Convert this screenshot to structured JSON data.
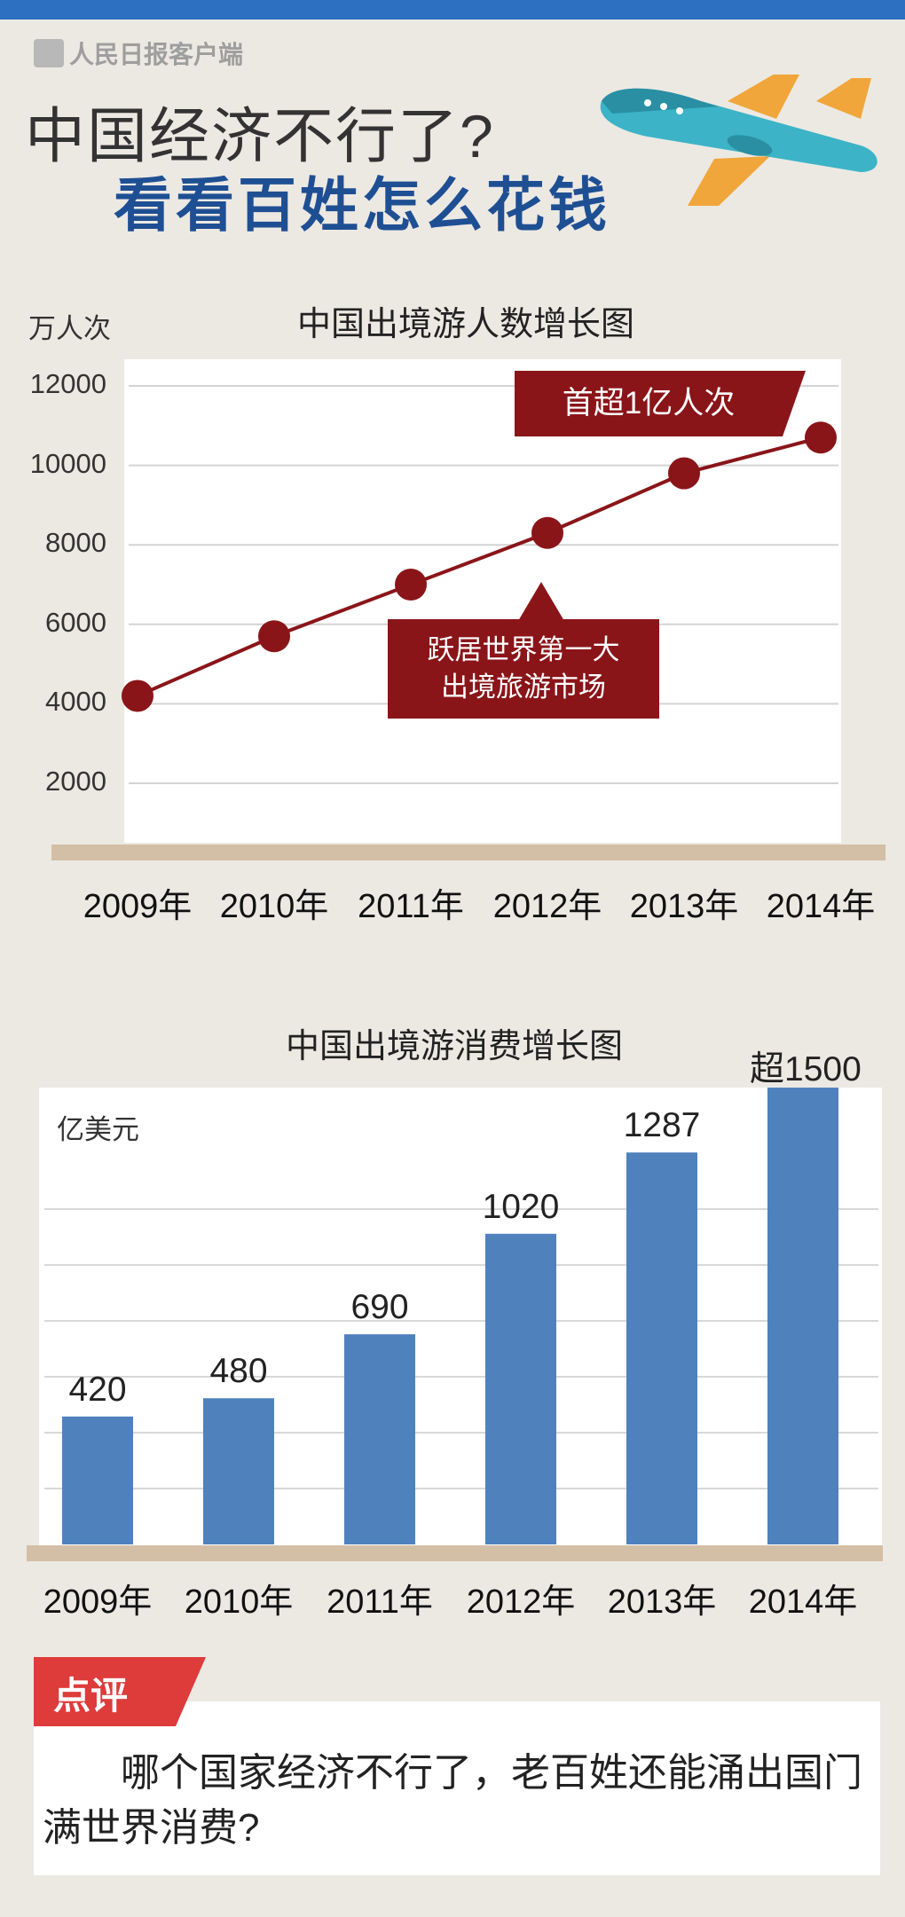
{
  "brand": {
    "logo_text": "人民日报客户端",
    "title_line1": "中国经济不行了?",
    "title_line2": "看看百姓怎么花钱",
    "colors": {
      "top_bar": "#2d6fc0",
      "title_accent": "#1f4f93",
      "callout": "#8a1519",
      "bar": "#4f81bd",
      "review_tag": "#de3b3b"
    }
  },
  "chart_data": [
    {
      "type": "line",
      "title": "中国出境游人数增长图",
      "ylabel": "万人次",
      "categories": [
        "2009年",
        "2010年",
        "2011年",
        "2012年",
        "2013年",
        "2014年"
      ],
      "values": [
        4200,
        5700,
        7000,
        8300,
        9800,
        10700
      ],
      "yticks": [
        "2000",
        "4000",
        "6000",
        "8000",
        "10000",
        "12000"
      ],
      "ylim": [
        0,
        12000
      ],
      "grid": true,
      "annotations": [
        {
          "text": "首超1亿人次",
          "category": "2014年"
        },
        {
          "lines": [
            "跃居世界第一大",
            "出境旅游市场"
          ],
          "category": "2012年"
        }
      ]
    },
    {
      "type": "bar",
      "title": "中国出境游消费增长图",
      "ylabel": "亿美元",
      "categories": [
        "2009年",
        "2010年",
        "2011年",
        "2012年",
        "2013年",
        "2014年"
      ],
      "values": [
        420,
        480,
        690,
        1020,
        1287,
        1500
      ],
      "labels": [
        "420",
        "480",
        "690",
        "1020",
        "1287",
        "超1500"
      ],
      "ylim": [
        0,
        1600
      ],
      "grid": true
    }
  ],
  "review": {
    "tag": "点评",
    "text": "哪个国家经济不行了，老百姓还能涌出国门满世界消费?"
  }
}
